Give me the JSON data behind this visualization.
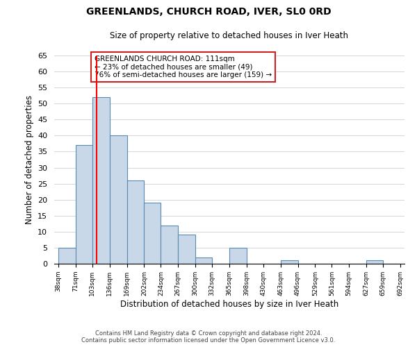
{
  "title": "GREENLANDS, CHURCH ROAD, IVER, SL0 0RD",
  "subtitle": "Size of property relative to detached houses in Iver Heath",
  "xlabel": "Distribution of detached houses by size in Iver Heath",
  "ylabel": "Number of detached properties",
  "bin_edges": [
    38,
    71,
    103,
    136,
    169,
    202,
    234,
    267,
    300,
    332,
    365,
    398,
    430,
    463,
    496,
    529,
    561,
    594,
    627,
    659,
    692
  ],
  "bar_heights": [
    5,
    37,
    52,
    40,
    26,
    19,
    12,
    9,
    2,
    0,
    5,
    0,
    0,
    1,
    0,
    0,
    0,
    0,
    1,
    0
  ],
  "bar_color": "#c8d8e8",
  "bar_edge_color": "#5a8ab0",
  "property_line_x": 111,
  "property_line_color": "red",
  "ylim": [
    0,
    65
  ],
  "yticks": [
    0,
    5,
    10,
    15,
    20,
    25,
    30,
    35,
    40,
    45,
    50,
    55,
    60,
    65
  ],
  "annotation_text": "GREENLANDS CHURCH ROAD: 111sqm\n← 23% of detached houses are smaller (49)\n76% of semi-detached houses are larger (159) →",
  "footer_line1": "Contains HM Land Registry data © Crown copyright and database right 2024.",
  "footer_line2": "Contains public sector information licensed under the Open Government Licence v3.0.",
  "background_color": "#ffffff",
  "grid_color": "#d0d8e0"
}
